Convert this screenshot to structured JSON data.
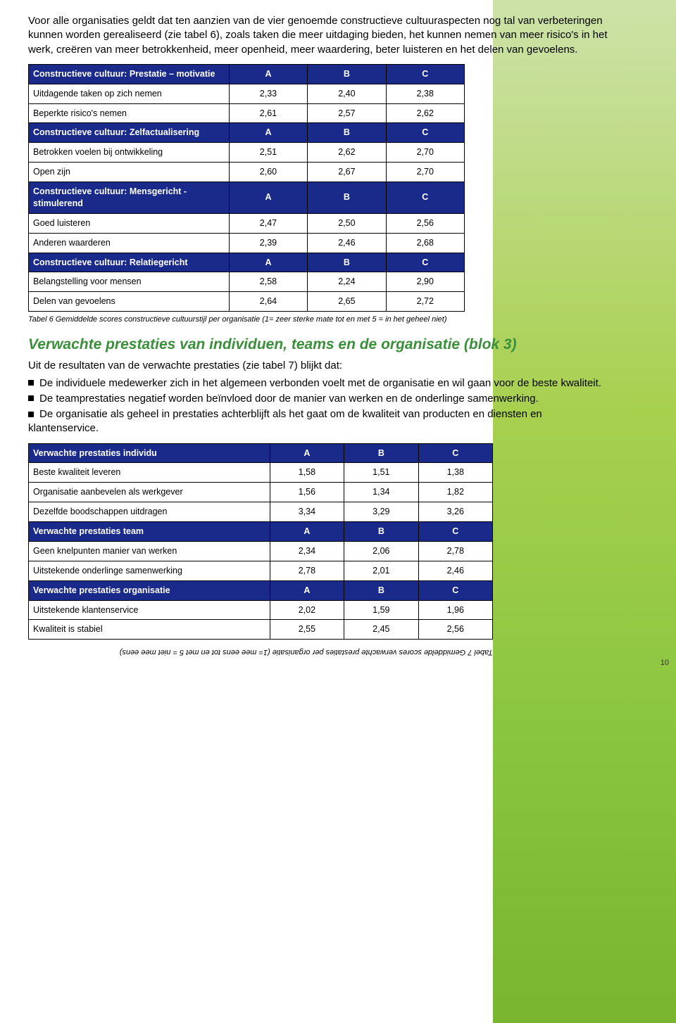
{
  "colors": {
    "header_bg": "#1a2a8a",
    "header_fg": "#ffffff",
    "border": "#000000",
    "section_title": "#3a8f3a",
    "gradient_top": "#cde2a8",
    "gradient_bottom": "#7ab530",
    "page_bg": "#ffffff",
    "text": "#000000"
  },
  "typography": {
    "body_font": "Verdana",
    "body_size_pt": 11,
    "table_size_pt": 9.5,
    "caption_size_pt": 8,
    "heading_font": "Trebuchet MS",
    "heading_size_pt": 16
  },
  "intro_paragraph": "Voor alle organisaties geldt dat ten aanzien van de vier genoemde constructieve cultuuraspecten nog tal van verbeteringen kunnen worden gerealiseerd (zie tabel 6), zoals taken die meer uitdaging bieden, het kunnen nemen van meer risico's in het werk, creëren van meer betrokkenheid, meer openheid, meer waardering, beter luisteren en het delen van gevoelens.",
  "table6": {
    "col_labels": [
      "A",
      "B",
      "C"
    ],
    "col_widths_pct": [
      46,
      18,
      18,
      18
    ],
    "sections": [
      {
        "header": "Constructieve cultuur: Prestatie – motivatie",
        "rows": [
          {
            "label": "Uitdagende taken op zich nemen",
            "vals": [
              "2,33",
              "2,40",
              "2,38"
            ]
          },
          {
            "label": "Beperkte risico's nemen",
            "vals": [
              "2,61",
              "2,57",
              "2,62"
            ]
          }
        ]
      },
      {
        "header": "Constructieve cultuur: Zelfactualisering",
        "rows": [
          {
            "label": "Betrokken voelen bij ontwikkeling",
            "vals": [
              "2,51",
              "2,62",
              "2,70"
            ]
          },
          {
            "label": "Open zijn",
            "vals": [
              "2,60",
              "2,67",
              "2,70"
            ]
          }
        ]
      },
      {
        "header": "Constructieve cultuur: Mensgericht - stimulerend",
        "rows": [
          {
            "label": "Goed luisteren",
            "vals": [
              "2,47",
              "2,50",
              "2,56"
            ]
          },
          {
            "label": "Anderen waarderen",
            "vals": [
              "2,39",
              "2,46",
              "2,68"
            ]
          }
        ]
      },
      {
        "header": "Constructieve cultuur: Relatiegericht",
        "rows": [
          {
            "label": "Belangstelling voor mensen",
            "vals": [
              "2,58",
              "2,24",
              "2,90"
            ]
          },
          {
            "label": "Delen van gevoelens",
            "vals": [
              "2,64",
              "2,65",
              "2,72"
            ]
          }
        ]
      }
    ]
  },
  "table6_caption": "Tabel 6  Gemiddelde scores constructieve cultuurstijl per organisatie (1= zeer sterke mate tot en met 5 = in het geheel niet)",
  "section_heading": "Verwachte prestaties van individuen, teams en de organisatie (blok 3)",
  "results_lead": "Uit de resultaten van de verwachte prestaties (zie tabel 7) blijkt dat:",
  "bullets": [
    "De individuele medewerker zich in het algemeen verbonden voelt met de organisatie en wil gaan voor de beste kwaliteit.",
    "De teamprestaties negatief worden beïnvloed door de manier van werken en de onderlinge samenwerking.",
    "De organisatie als geheel in prestaties achterblijft als het gaat om de kwaliteit van producten en diensten en klantenservice."
  ],
  "table7": {
    "col_labels": [
      "A",
      "B",
      "C"
    ],
    "col_widths_pct": [
      52,
      16,
      16,
      16
    ],
    "sections": [
      {
        "header": "Verwachte prestaties individu",
        "rows": [
          {
            "label": "Beste kwaliteit leveren",
            "vals": [
              "1,58",
              "1,51",
              "1,38"
            ]
          },
          {
            "label": "Organisatie aanbevelen als werkgever",
            "vals": [
              "1,56",
              "1,34",
              "1,82"
            ]
          },
          {
            "label": "Dezelfde boodschappen uitdragen",
            "vals": [
              "3,34",
              "3,29",
              "3,26"
            ]
          }
        ]
      },
      {
        "header": "Verwachte prestaties team",
        "rows": [
          {
            "label": "Geen knelpunten manier van werken",
            "vals": [
              "2,34",
              "2,06",
              "2,78"
            ]
          },
          {
            "label": "Uitstekende onderlinge samenwerking",
            "vals": [
              "2,78",
              "2,01",
              "2,46"
            ]
          }
        ]
      },
      {
        "header": "Verwachte prestaties organisatie",
        "rows": [
          {
            "label": "Uitstekende klantenservice",
            "vals": [
              "2,02",
              "1,59",
              "1,96"
            ]
          },
          {
            "label": "Kwaliteit is stabiel",
            "vals": [
              "2,55",
              "2,45",
              "2,56"
            ]
          }
        ]
      }
    ]
  },
  "table7_caption": "Tabel 7  Gemiddelde scores verwachte prestaties per organisatie (1= mee eens tot en met 5 = niet mee eens)",
  "page_number": "10"
}
